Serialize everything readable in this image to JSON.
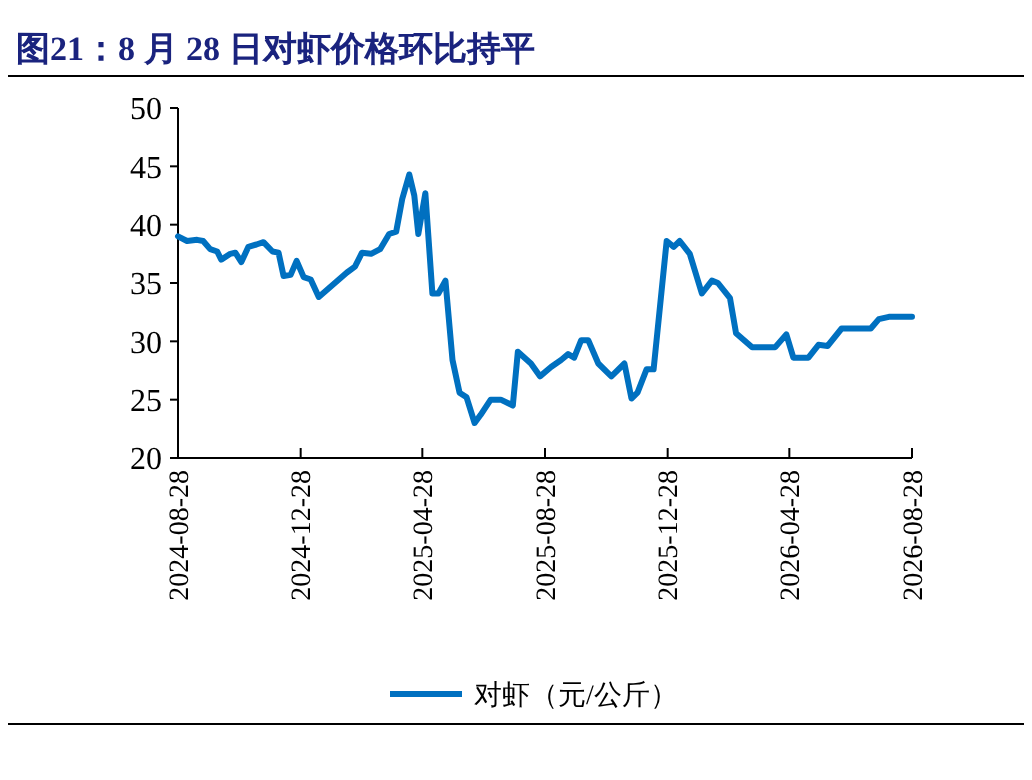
{
  "chart_data": {
    "type": "line",
    "title": "图21：8 月 28 日对虾价格环比持平",
    "x": [
      "2024-08-28",
      "2024-09-06",
      "2024-09-16",
      "2024-09-22",
      "2024-09-29",
      "2024-10-06",
      "2024-10-10",
      "2024-10-19",
      "2024-10-24",
      "2024-10-30",
      "2024-11-06",
      "2024-11-14",
      "2024-11-21",
      "2024-11-30",
      "2024-12-06",
      "2024-12-11",
      "2024-12-18",
      "2024-12-24",
      "2024-12-31",
      "2025-01-07",
      "2025-01-15",
      "2025-01-27",
      "2025-02-12",
      "2025-02-20",
      "2025-02-27",
      "2025-03-08",
      "2025-03-17",
      "2025-03-26",
      "2025-04-02",
      "2025-04-08",
      "2025-04-15",
      "2025-04-20",
      "2025-04-24",
      "2025-05-01",
      "2025-05-08",
      "2025-05-14",
      "2025-05-21",
      "2025-05-28",
      "2025-06-04",
      "2025-06-11",
      "2025-06-19",
      "2025-06-25",
      "2025-07-05",
      "2025-07-15",
      "2025-07-27",
      "2025-08-01",
      "2025-08-14",
      "2025-08-23",
      "2025-09-03",
      "2025-09-13",
      "2025-09-20",
      "2025-09-26",
      "2025-10-03",
      "2025-10-10",
      "2025-10-20",
      "2025-11-02",
      "2025-11-15",
      "2025-11-22",
      "2025-11-28",
      "2025-12-07",
      "2025-12-14",
      "2025-12-27",
      "2026-01-03",
      "2026-01-09",
      "2026-01-19",
      "2026-01-31",
      "2026-02-10",
      "2026-02-16",
      "2026-02-28",
      "2026-03-06",
      "2026-03-22",
      "2026-04-14",
      "2026-04-25",
      "2026-05-02",
      "2026-05-17",
      "2026-05-27",
      "2026-06-05",
      "2026-06-19",
      "2026-07-18",
      "2026-07-26",
      "2026-08-05",
      "2026-08-28"
    ],
    "series": [
      {
        "name": "对虾（元/公斤）",
        "color": "#0070c0",
        "values": [
          39.0,
          38.6,
          38.7,
          38.6,
          37.9,
          37.7,
          37.0,
          37.5,
          37.6,
          36.8,
          38.1,
          38.3,
          38.5,
          37.7,
          37.6,
          35.6,
          35.7,
          36.9,
          35.5,
          35.3,
          33.8,
          34.7,
          35.9,
          36.4,
          37.6,
          37.5,
          37.9,
          39.2,
          39.4,
          42.2,
          44.3,
          42.5,
          39.2,
          42.7,
          34.1,
          34.1,
          35.2,
          28.4,
          25.6,
          25.2,
          23.0,
          23.7,
          25.0,
          25.0,
          24.5,
          29.1,
          28.1,
          27.0,
          27.8,
          28.4,
          28.9,
          28.6,
          30.1,
          30.1,
          28.1,
          27.0,
          28.1,
          25.1,
          25.6,
          27.6,
          27.6,
          38.6,
          38.1,
          38.6,
          37.5,
          34.1,
          35.2,
          35.0,
          33.7,
          30.7,
          29.5,
          29.5,
          30.6,
          28.6,
          28.6,
          29.7,
          29.6,
          31.1,
          31.1,
          31.9,
          32.1,
          32.1
        ]
      }
    ],
    "xlim": [
      "2024-08-28",
      "2026-08-28"
    ],
    "xticks": [
      "2024-08-28",
      "2024-12-28",
      "2025-04-28",
      "2025-08-28",
      "2025-12-28",
      "2026-04-28",
      "2026-08-28"
    ],
    "ylim": [
      20,
      50
    ],
    "yticks": [
      20,
      25,
      30,
      35,
      40,
      45,
      50
    ],
    "grid": false,
    "legend": "bottom",
    "marker": "none",
    "line_style": "solid"
  }
}
